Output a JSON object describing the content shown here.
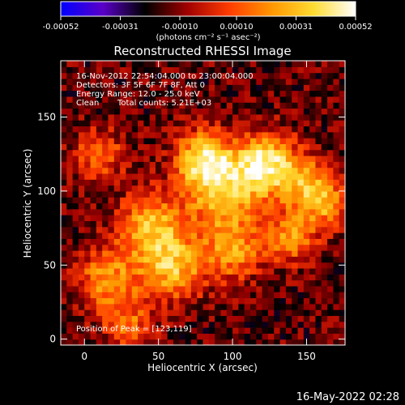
{
  "colorbar": {
    "ticks": [
      -0.00052,
      -0.00031,
      -0.0001,
      0.0001,
      0.00031,
      0.00052
    ],
    "tick_labels": [
      "-0.00052",
      "-0.00031",
      "-0.00010",
      "0.00010",
      "0.00031",
      "0.00052"
    ],
    "range": [
      -0.00052,
      0.00052
    ],
    "units_label": "(photons cm⁻² s⁻¹ asec⁻²)",
    "colormap_stops": [
      "#0000ff",
      "#5a00c8",
      "#000000",
      "#a00000",
      "#ff3c00",
      "#ff9600",
      "#ffdc32",
      "#ffffff"
    ]
  },
  "chart_data": {
    "type": "heatmap",
    "title": "Reconstructed RHESSI Image",
    "xlabel": "Heliocentric X (arcsec)",
    "ylabel": "Heliocentric Y (arcsec)",
    "xlim": [
      -16,
      176
    ],
    "ylim": [
      -4,
      188
    ],
    "xticks": [
      0,
      50,
      100,
      150
    ],
    "yticks": [
      0,
      50,
      100,
      150
    ],
    "xtick_labels": [
      "0",
      "50",
      "100",
      "150"
    ],
    "ytick_labels": [
      "0",
      "50",
      "100",
      "150"
    ],
    "grid": false,
    "pixel_size_arcsec": 4,
    "peak_position": [
      123,
      119
    ],
    "emission_sources": [
      {
        "x": 123,
        "y": 119,
        "intensity": 0.00052,
        "sigma": 14
      },
      {
        "x": 80,
        "y": 122,
        "intensity": 0.00045,
        "sigma": 13
      },
      {
        "x": 95,
        "y": 100,
        "intensity": 0.0004,
        "sigma": 18
      },
      {
        "x": 45,
        "y": 75,
        "intensity": 0.00038,
        "sigma": 16
      },
      {
        "x": 60,
        "y": 48,
        "intensity": 0.00035,
        "sigma": 15
      },
      {
        "x": 150,
        "y": 105,
        "intensity": 0.00033,
        "sigma": 12
      },
      {
        "x": 15,
        "y": 40,
        "intensity": 0.0003,
        "sigma": 14
      },
      {
        "x": 140,
        "y": 70,
        "intensity": 0.0003,
        "sigma": 12
      },
      {
        "x": 100,
        "y": 60,
        "intensity": 0.00028,
        "sigma": 14
      },
      {
        "x": 10,
        "y": 125,
        "intensity": 0.0002,
        "sigma": 12
      },
      {
        "x": 165,
        "y": 90,
        "intensity": 0.00025,
        "sigma": 10
      },
      {
        "x": 30,
        "y": 10,
        "intensity": 0.00018,
        "sigma": 12
      }
    ],
    "background_level": -0.00014
  },
  "annotations": {
    "time_range": "16-Nov-2012 22:54:04.000 to 23:00:04.000",
    "detectors": "Detectors: 3F 5F 6F 7F 8F, Att 0",
    "energy_range": "Energy Range: 12.0 - 25.0 keV",
    "method": "Clean",
    "total_counts": "Total counts: 5.21E+03",
    "peak_label": "Position of Peak = [123,119]"
  },
  "footer": {
    "timestamp": "16-May-2022 02:28"
  }
}
